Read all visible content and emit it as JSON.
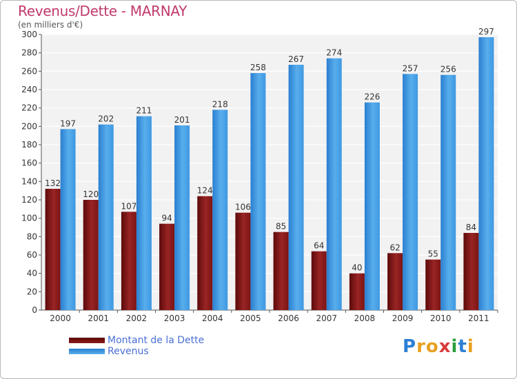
{
  "chart_data": {
    "type": "bar",
    "title": "Revenus/Dette - MARNAY",
    "subtitle": "(en milliers d'€)",
    "categories": [
      "2000",
      "2001",
      "2002",
      "2003",
      "2004",
      "2005",
      "2006",
      "2007",
      "2008",
      "2009",
      "2010",
      "2011"
    ],
    "series": [
      {
        "name": "Montant de la Dette",
        "color": "#8b1a1a",
        "values": [
          132,
          120,
          107,
          94,
          124,
          106,
          85,
          64,
          40,
          62,
          55,
          84
        ]
      },
      {
        "name": "Revenus",
        "color": "#3b97e0",
        "values": [
          197,
          202,
          211,
          201,
          218,
          258,
          267,
          274,
          226,
          257,
          256,
          297
        ]
      }
    ],
    "ylim": [
      0,
      300
    ],
    "y_ticks": [
      0,
      20,
      40,
      60,
      80,
      100,
      120,
      140,
      160,
      180,
      200,
      220,
      240,
      260,
      280,
      300
    ],
    "grid": true,
    "legend_position": "bottom-left"
  },
  "logo": {
    "text": "Proxiti",
    "letters": [
      {
        "ch": "P",
        "color": "#2b7fd4"
      },
      {
        "ch": "r",
        "color": "#e8a020"
      },
      {
        "ch": "o",
        "color": "#e8a020"
      },
      {
        "ch": "x",
        "color": "#d93a3a"
      },
      {
        "ch": "i",
        "color": "#2a9d3a"
      },
      {
        "ch": "t",
        "color": "#2b7fd4"
      },
      {
        "ch": "i",
        "color": "#e8a020"
      }
    ]
  }
}
